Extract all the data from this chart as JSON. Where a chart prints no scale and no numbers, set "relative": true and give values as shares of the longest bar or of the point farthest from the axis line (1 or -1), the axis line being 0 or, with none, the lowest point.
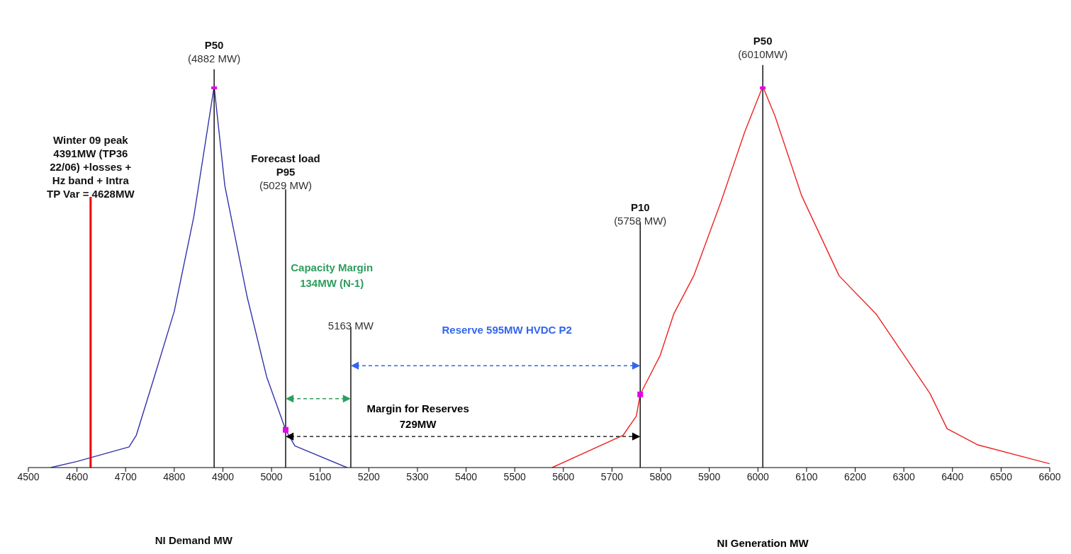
{
  "chart_data": {
    "type": "line",
    "relative": true,
    "xlabel": "NI Demand MW",
    "xlim": [
      4500,
      6600
    ],
    "xticks": [
      4500,
      4600,
      4700,
      4800,
      4900,
      5000,
      5100,
      5200,
      5300,
      5400,
      5500,
      5600,
      5700,
      5800,
      5900,
      6000,
      6100,
      6200,
      6300,
      6400,
      6500,
      6600
    ],
    "marker": "none",
    "line_style": "solid",
    "series": [
      {
        "color": "#3333aa",
        "x": [
          4546,
          4600,
          4707,
          4722,
          4759,
          4800,
          4840,
          4882,
          4904,
          4950,
          4990,
          5029,
          5048,
          5155
        ],
        "values": [
          0,
          0.016,
          0.054,
          0.085,
          0.238,
          0.41,
          0.657,
          1,
          0.739,
          0.447,
          0.238,
          0.099,
          0.057,
          0
        ]
      },
      {
        "color": "#ee2222",
        "x": [
          5577,
          5723,
          5750,
          5758,
          5799,
          5827,
          5868,
          5924,
          5973,
          6010,
          6035,
          6090,
          6167,
          6243,
          6354,
          6389,
          6451,
          6600
        ],
        "values": [
          0,
          0.085,
          0.135,
          0.192,
          0.294,
          0.403,
          0.503,
          0.697,
          0.881,
          1,
          0.923,
          0.713,
          0.503,
          0.403,
          0.194,
          0.102,
          0.06,
          0.01
        ]
      },
      {
        "type": "scatter",
        "marker": "square",
        "color": "#e600e6",
        "x": [
          4882,
          5029,
          5758,
          6010
        ],
        "values": [
          1,
          0.099,
          0.192,
          1
        ]
      }
    ],
    "ref_lines": [
      {
        "axis": "x",
        "value": 4628,
        "label": "Winter 09 peak\n4391MW (TP36\n22/06) +losses +\nHz band + Intra\nTP Var = 4628MW",
        "color": "#ee0000"
      },
      {
        "axis": "x",
        "value": 4882,
        "label": "P50\n(4882 MW)",
        "color": "#000000"
      },
      {
        "axis": "x",
        "value": 5029,
        "label": "Forecast load\nP95\n(5029 MW)",
        "color": "#000000"
      },
      {
        "axis": "x",
        "value": 5163,
        "label": "5163 MW",
        "color": "#000000"
      },
      {
        "axis": "x",
        "value": 5758,
        "label": "P10\n(5758 MW)",
        "color": "#000000"
      },
      {
        "axis": "x",
        "value": 6010,
        "label": "P50\n(6010MW)",
        "color": "#000000"
      }
    ],
    "annotations": [
      "Capacity Margin\n134MW (N-1)",
      "Reserve 595MW HVDC P2",
      "Margin for Reserves\n729MW",
      "NI Generation MW"
    ]
  }
}
